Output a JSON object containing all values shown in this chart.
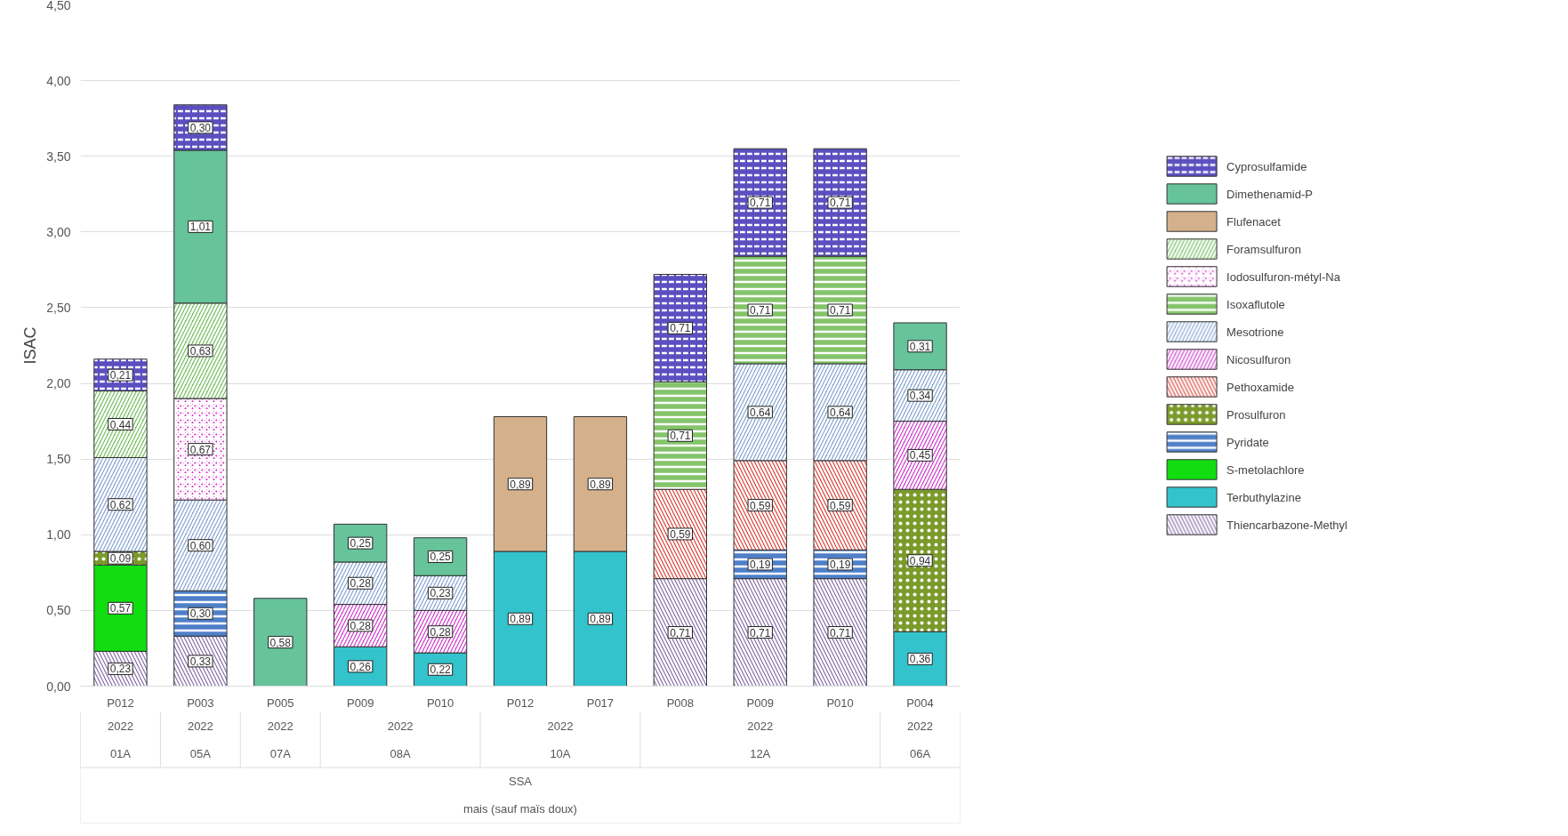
{
  "chart_data": {
    "type": "bar",
    "stacked": true,
    "ylabel": "ISAC",
    "categories": [
      "P012",
      "P003",
      "P005",
      "P009",
      "P010",
      "P012",
      "P017",
      "P008",
      "P009",
      "P010",
      "P004"
    ],
    "series": [
      {
        "name": "Thiencarbazone-Methyl",
        "color": "#8064a2",
        "values": [
          0.23,
          0.33,
          null,
          null,
          null,
          null,
          null,
          0.71,
          0.71,
          0.71,
          null
        ],
        "value_labels": [
          "0,23",
          "0,33",
          null,
          null,
          null,
          null,
          null,
          "0,71",
          "0,71",
          "0,71",
          null
        ]
      },
      {
        "name": "Terbuthylazine",
        "color": "#33c3cc",
        "values": [
          null,
          null,
          null,
          0.26,
          0.22,
          0.89,
          0.89,
          null,
          null,
          null,
          0.36
        ],
        "value_labels": [
          null,
          null,
          null,
          "0,26",
          "0,22",
          "0,89",
          "0,89",
          null,
          null,
          null,
          "0,36"
        ]
      },
      {
        "name": "S-metolachlore",
        "color": "#11dd11",
        "values": [
          0.57,
          null,
          null,
          null,
          null,
          null,
          null,
          null,
          null,
          null,
          null
        ],
        "value_labels": [
          "0,57",
          null,
          null,
          null,
          null,
          null,
          null,
          null,
          null,
          null,
          null
        ]
      },
      {
        "name": "Pyridate",
        "color": "#4f7fc8",
        "values": [
          null,
          0.3,
          null,
          null,
          null,
          null,
          null,
          null,
          0.19,
          0.19,
          null
        ],
        "value_labels": [
          null,
          "0,30",
          null,
          null,
          null,
          null,
          null,
          null,
          "0,19",
          "0,19",
          null
        ]
      },
      {
        "name": "Prosulfuron",
        "color": "#7a9a2a",
        "values": [
          0.09,
          null,
          null,
          null,
          null,
          null,
          null,
          null,
          null,
          null,
          0.94
        ],
        "value_labels": [
          "0,09",
          null,
          null,
          null,
          null,
          null,
          null,
          null,
          null,
          null,
          "0,94"
        ]
      },
      {
        "name": "Pethoxamide",
        "color": "#d9362c",
        "values": [
          null,
          null,
          null,
          null,
          null,
          null,
          null,
          0.59,
          0.59,
          0.59,
          null
        ],
        "value_labels": [
          null,
          null,
          null,
          null,
          null,
          null,
          null,
          "0,59",
          "0,59",
          "0,59",
          null
        ]
      },
      {
        "name": "Nicosulfuron",
        "color": "#cc33cc",
        "values": [
          null,
          null,
          null,
          0.28,
          0.28,
          null,
          null,
          null,
          null,
          null,
          0.45
        ],
        "value_labels": [
          null,
          null,
          null,
          "0,28",
          "0,28",
          null,
          null,
          null,
          null,
          null,
          "0,45"
        ]
      },
      {
        "name": "Mesotrione",
        "color": "#7f9fd0",
        "values": [
          0.62,
          0.6,
          null,
          0.28,
          0.23,
          null,
          null,
          null,
          0.64,
          0.64,
          0.34
        ],
        "value_labels": [
          "0,62",
          "0,60",
          null,
          "0,28",
          "0,23",
          null,
          null,
          null,
          "0,64",
          "0,64",
          "0,34"
        ]
      },
      {
        "name": "Isoxaflutole",
        "color": "#84c46a",
        "values": [
          null,
          null,
          null,
          null,
          null,
          null,
          null,
          0.71,
          0.71,
          0.71,
          null
        ],
        "value_labels": [
          null,
          null,
          null,
          null,
          null,
          null,
          null,
          "0,71",
          "0,71",
          "0,71",
          null
        ]
      },
      {
        "name": "Iodosulfuron-métyl-Na",
        "color": "#cc00bb",
        "values": [
          null,
          0.67,
          null,
          null,
          null,
          null,
          null,
          null,
          null,
          null,
          null
        ],
        "value_labels": [
          null,
          "0,67",
          null,
          null,
          null,
          null,
          null,
          null,
          null,
          null,
          null
        ]
      },
      {
        "name": "Foramsulfuron",
        "color": "#6cbb55",
        "values": [
          0.44,
          0.63,
          null,
          null,
          null,
          null,
          null,
          null,
          null,
          null,
          null
        ],
        "value_labels": [
          "0,44",
          "0,63",
          null,
          null,
          null,
          null,
          null,
          null,
          null,
          null,
          null
        ]
      },
      {
        "name": "Flufenacet",
        "color": "#d4b08c",
        "values": [
          null,
          null,
          null,
          null,
          null,
          0.89,
          0.89,
          null,
          null,
          null,
          null
        ],
        "value_labels": [
          null,
          null,
          null,
          null,
          null,
          "0,89",
          "0,89",
          null,
          null,
          null,
          null
        ]
      },
      {
        "name": "Dimethenamid-P",
        "color": "#66c39a",
        "values": [
          null,
          1.01,
          0.58,
          0.25,
          0.25,
          null,
          null,
          null,
          null,
          null,
          0.31
        ],
        "value_labels": [
          null,
          "1,01",
          "0,58",
          "0,25",
          "0,25",
          null,
          null,
          null,
          null,
          null,
          "0,31"
        ]
      },
      {
        "name": "Cyprosulfamide",
        "color": "#5b4fc0",
        "values": [
          0.21,
          0.3,
          null,
          null,
          null,
          null,
          null,
          0.71,
          0.71,
          0.71,
          null
        ],
        "value_labels": [
          "0,21",
          "0,30",
          null,
          null,
          null,
          null,
          null,
          "0,71",
          "0,71",
          "0,71",
          null
        ]
      }
    ],
    "ylim": [
      0,
      4.5
    ],
    "yticks": [
      {
        "value": 0,
        "label": "0,00"
      },
      {
        "value": 0.5,
        "label": "0,50"
      },
      {
        "value": 1,
        "label": "1,00"
      },
      {
        "value": 1.5,
        "label": "1,50"
      },
      {
        "value": 2,
        "label": "2,00"
      },
      {
        "value": 2.5,
        "label": "2,50"
      },
      {
        "value": 3,
        "label": "3,00"
      },
      {
        "value": 3.5,
        "label": "3,50"
      },
      {
        "value": 4,
        "label": "4,00"
      },
      {
        "value": 4.5,
        "label": "4,50"
      }
    ],
    "annotations": [
      "2022",
      "01A",
      "2022",
      "05A",
      "2022",
      "07A",
      "2022",
      "08A",
      "2022",
      "10A",
      "2022",
      "12A",
      "2022",
      "06A",
      "SSA",
      "mais (sauf maïs doux)"
    ],
    "grid": "y",
    "legend": "right"
  }
}
